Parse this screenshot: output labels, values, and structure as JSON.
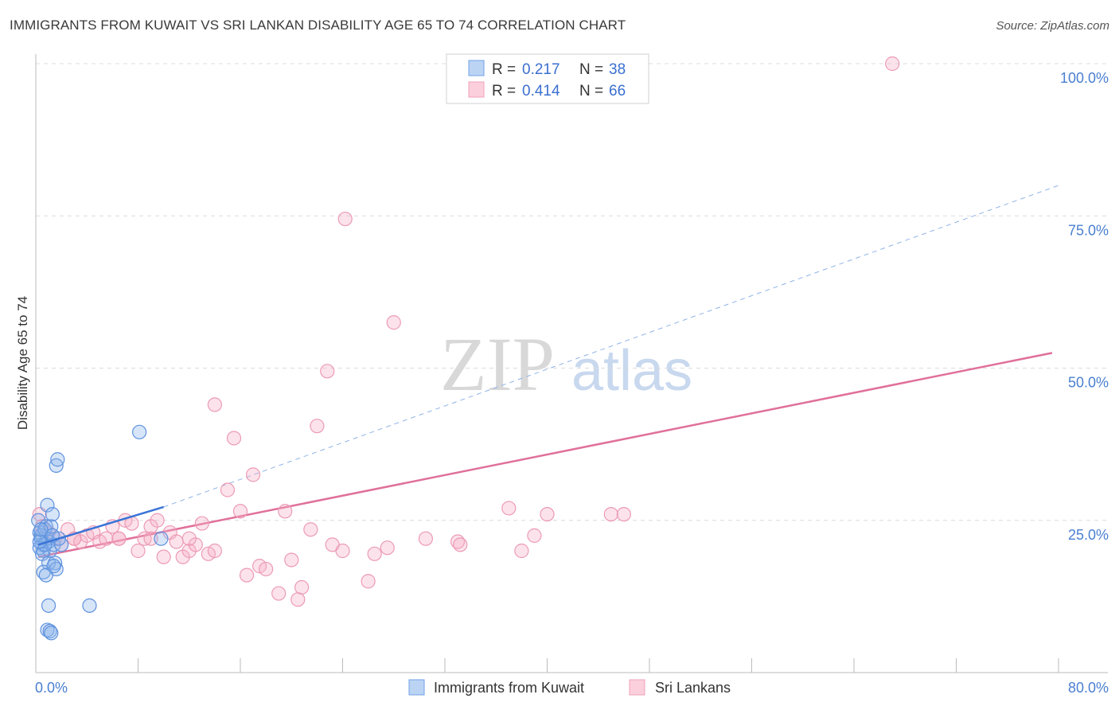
{
  "title": "IMMIGRANTS FROM KUWAIT VS SRI LANKAN DISABILITY AGE 65 TO 74 CORRELATION CHART",
  "source": "Source: ZipAtlas.com",
  "watermark": {
    "zip": "ZIP",
    "atlas": "atlas"
  },
  "chart_data": {
    "type": "scatter",
    "title": "IMMIGRANTS FROM KUWAIT VS SRI LANKAN DISABILITY AGE 65 TO 74 CORRELATION CHART",
    "xlabel": "",
    "ylabel": "Disability Age 65 to 74",
    "xlim": [
      0,
      80
    ],
    "ylim": [
      0,
      100
    ],
    "x_tick_labels": [
      {
        "value": 0,
        "label": "0.0%"
      },
      {
        "value": 80,
        "label": "80.0%"
      }
    ],
    "y_tick_labels": [
      {
        "value": 25,
        "label": "25.0%"
      },
      {
        "value": 50,
        "label": "50.0%"
      },
      {
        "value": 75,
        "label": "75.0%"
      },
      {
        "value": 100,
        "label": "100.0%"
      }
    ],
    "legend": {
      "position": "top-center",
      "entries": [
        {
          "r_label": "R =",
          "r_value": "0.217",
          "n_label": "N =",
          "n_value": "38"
        },
        {
          "r_label": "R =",
          "r_value": "0.414",
          "n_label": "N =",
          "n_value": "66"
        }
      ]
    },
    "series": [
      {
        "name": "Immigrants from Kuwait",
        "color": "#6fa0e6",
        "trend": {
          "x0": 0.2,
          "y0": 21.0,
          "x1": 10.0,
          "y1": 27.2,
          "extended_to_x": 80,
          "extended_to_y": 80
        },
        "points": [
          [
            0.2,
            25
          ],
          [
            0.3,
            23
          ],
          [
            0.4,
            22
          ],
          [
            0.5,
            21
          ],
          [
            0.3,
            20.5
          ],
          [
            0.6,
            20
          ],
          [
            0.8,
            24
          ],
          [
            0.9,
            22
          ],
          [
            1.0,
            21.5
          ],
          [
            1.1,
            20
          ],
          [
            0.5,
            19.5
          ],
          [
            0.4,
            22.5
          ],
          [
            0.7,
            23.5
          ],
          [
            0.9,
            27.5
          ],
          [
            1.2,
            24
          ],
          [
            1.3,
            26
          ],
          [
            1.4,
            21
          ],
          [
            1.0,
            18
          ],
          [
            1.5,
            18
          ],
          [
            1.6,
            17
          ],
          [
            0.6,
            16.5
          ],
          [
            0.8,
            16
          ],
          [
            1.4,
            17.5
          ],
          [
            1.6,
            34
          ],
          [
            1.7,
            35
          ],
          [
            1.0,
            11
          ],
          [
            0.9,
            7
          ],
          [
            1.1,
            6.8
          ],
          [
            1.2,
            6.5
          ],
          [
            2.0,
            21
          ],
          [
            1.8,
            22
          ],
          [
            0.7,
            21
          ],
          [
            0.3,
            21.5
          ],
          [
            1.3,
            22.5
          ],
          [
            4.2,
            11
          ],
          [
            8.1,
            39.5
          ],
          [
            9.8,
            22
          ],
          [
            0.4,
            23.5
          ]
        ]
      },
      {
        "name": "Sri Lankans",
        "color": "#f0a0b8",
        "trend": {
          "x0": 0.2,
          "y0": 19.0,
          "x1": 79.5,
          "y1": 52.5
        },
        "points": [
          [
            0.3,
            26
          ],
          [
            0.5,
            24
          ],
          [
            1.0,
            23
          ],
          [
            1.5,
            22
          ],
          [
            2.0,
            21
          ],
          [
            2.5,
            23.5
          ],
          [
            3.0,
            22
          ],
          [
            3.5,
            21.5
          ],
          [
            4.0,
            22.5
          ],
          [
            4.5,
            23
          ],
          [
            5.0,
            21.5
          ],
          [
            5.5,
            22
          ],
          [
            6.0,
            24
          ],
          [
            6.5,
            22
          ],
          [
            7.0,
            25
          ],
          [
            7.5,
            24.5
          ],
          [
            8.0,
            20
          ],
          [
            8.5,
            22
          ],
          [
            9.0,
            24
          ],
          [
            9.5,
            25
          ],
          [
            10.0,
            19
          ],
          [
            10.5,
            23
          ],
          [
            11.0,
            21.5
          ],
          [
            11.5,
            19
          ],
          [
            12.0,
            20
          ],
          [
            12.5,
            21
          ],
          [
            13.0,
            24.5
          ],
          [
            13.5,
            19.5
          ],
          [
            14.0,
            20
          ],
          [
            15.0,
            30
          ],
          [
            15.5,
            38.5
          ],
          [
            16.0,
            26.5
          ],
          [
            16.5,
            16
          ],
          [
            17.0,
            32.5
          ],
          [
            17.5,
            17.5
          ],
          [
            18.0,
            17
          ],
          [
            19.0,
            13
          ],
          [
            19.5,
            26.5
          ],
          [
            20.0,
            18.5
          ],
          [
            20.5,
            12
          ],
          [
            20.8,
            14
          ],
          [
            21.5,
            23.5
          ],
          [
            22.0,
            40.5
          ],
          [
            22.8,
            49.5
          ],
          [
            23.2,
            21
          ],
          [
            24.0,
            20
          ],
          [
            24.2,
            74.5
          ],
          [
            26.0,
            15
          ],
          [
            26.5,
            19.5
          ],
          [
            27.5,
            20.5
          ],
          [
            28.0,
            57.5
          ],
          [
            30.5,
            22
          ],
          [
            33.0,
            21.5
          ],
          [
            33.2,
            21
          ],
          [
            37.0,
            27
          ],
          [
            38.0,
            20
          ],
          [
            39.0,
            22.5
          ],
          [
            40.0,
            26
          ],
          [
            45.0,
            26
          ],
          [
            46.0,
            26
          ],
          [
            67.0,
            100
          ],
          [
            3.0,
            22
          ],
          [
            6.5,
            22
          ],
          [
            9.0,
            22
          ],
          [
            12.0,
            22
          ],
          [
            14.0,
            44
          ]
        ]
      }
    ]
  }
}
